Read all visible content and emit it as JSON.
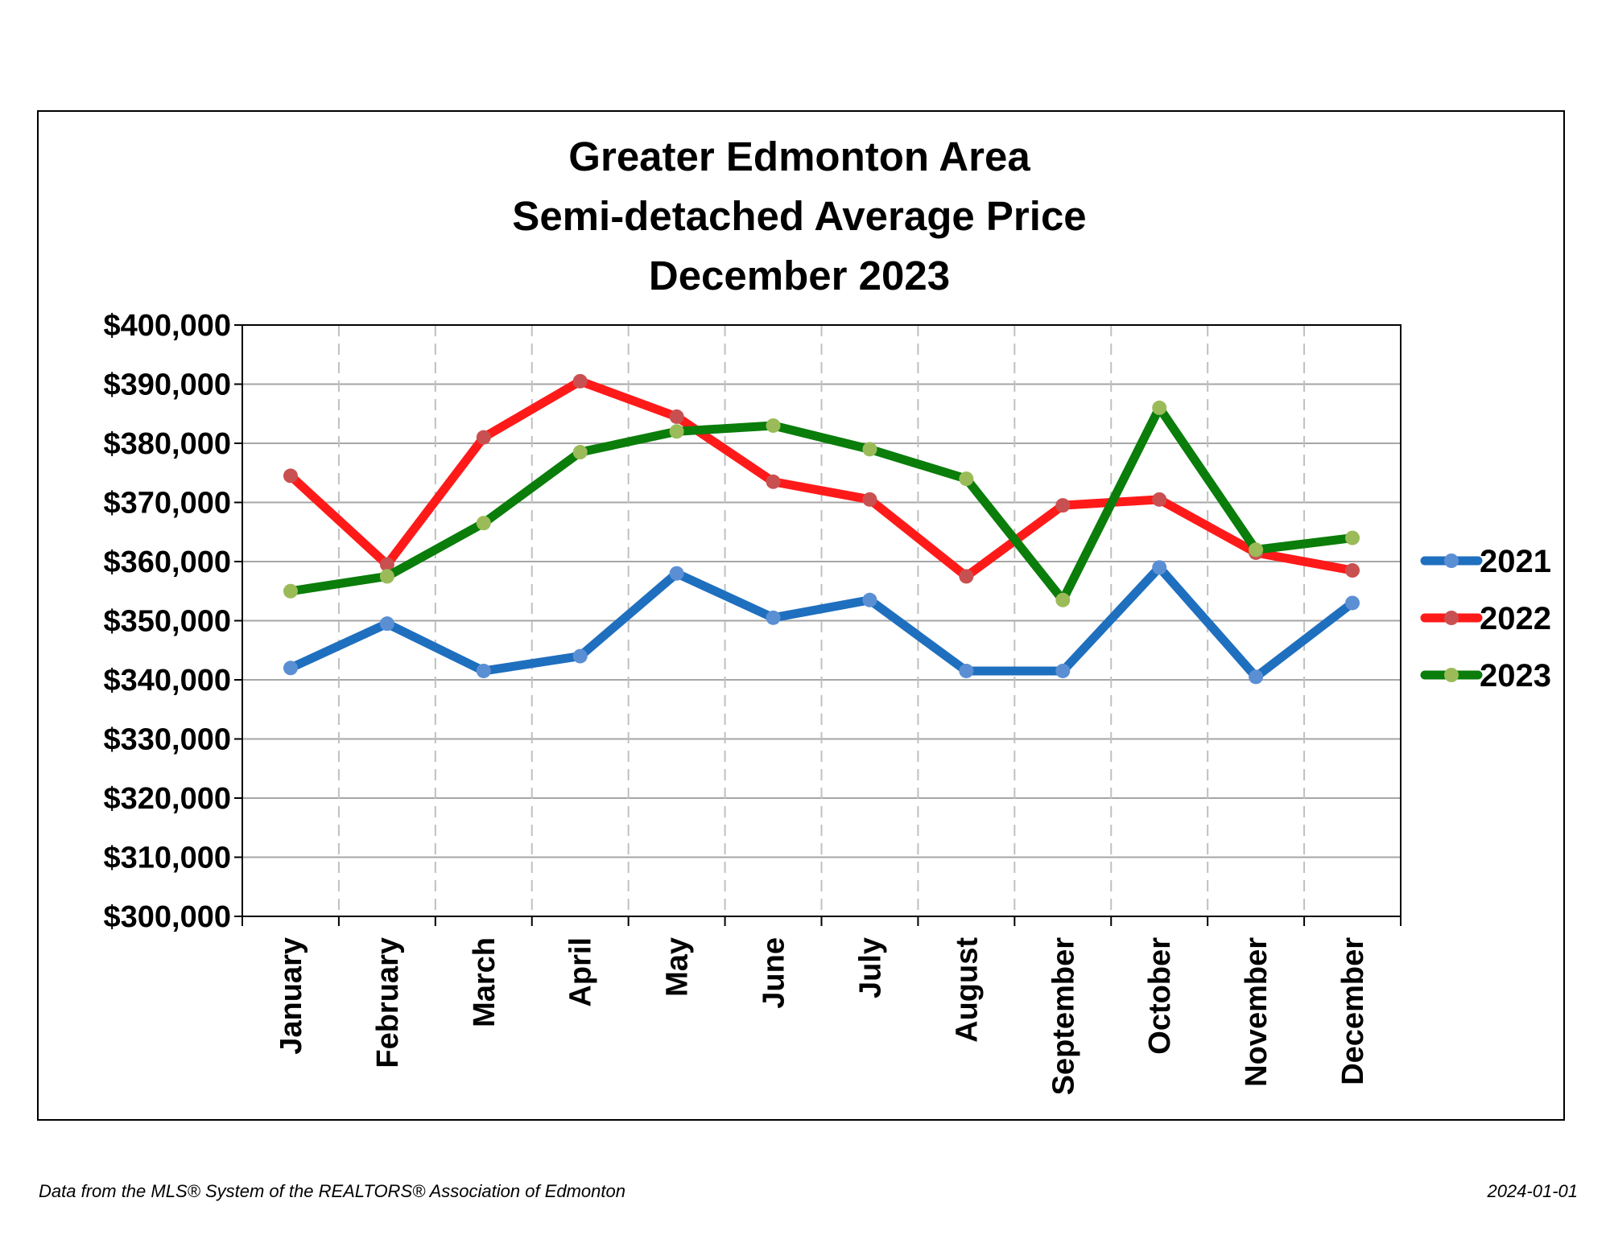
{
  "footer": {
    "source": "Data from the MLS® System of the REALTORS® Association of Edmonton",
    "date": "2024-01-01"
  },
  "chart_data": {
    "type": "line",
    "title_lines": [
      "Greater Edmonton Area",
      "Semi-detached Average Price",
      "December 2023"
    ],
    "xlabel": "",
    "ylabel": "",
    "categories": [
      "January",
      "February",
      "March",
      "April",
      "May",
      "June",
      "July",
      "August",
      "September",
      "October",
      "November",
      "December"
    ],
    "ylim": [
      300000,
      400000
    ],
    "yticks": [
      300000,
      310000,
      320000,
      330000,
      340000,
      350000,
      360000,
      370000,
      380000,
      390000,
      400000
    ],
    "ytick_labels": [
      "$300,000",
      "$310,000",
      "$320,000",
      "$330,000",
      "$340,000",
      "$350,000",
      "$360,000",
      "$370,000",
      "$380,000",
      "$390,000",
      "$400,000"
    ],
    "grid": "horizontal solid, vertical dashed",
    "legend_position": "right",
    "series": [
      {
        "name": "2021",
        "line_color": "#1f6fbf",
        "marker_color": "#5b8fd4",
        "values": [
          342000,
          349500,
          341500,
          344000,
          358000,
          350500,
          353500,
          341500,
          341500,
          359000,
          340500,
          353000
        ]
      },
      {
        "name": "2022",
        "line_color": "#ff1a1a",
        "marker_color": "#c95050",
        "values": [
          374500,
          359500,
          381000,
          390500,
          384500,
          373500,
          370500,
          357500,
          369500,
          370500,
          361500,
          358500
        ]
      },
      {
        "name": "2023",
        "line_color": "#0a7d0a",
        "marker_color": "#9bbb59",
        "values": [
          355000,
          357500,
          366500,
          378500,
          382000,
          383000,
          379000,
          374000,
          353500,
          386000,
          362000,
          364000
        ]
      }
    ]
  }
}
